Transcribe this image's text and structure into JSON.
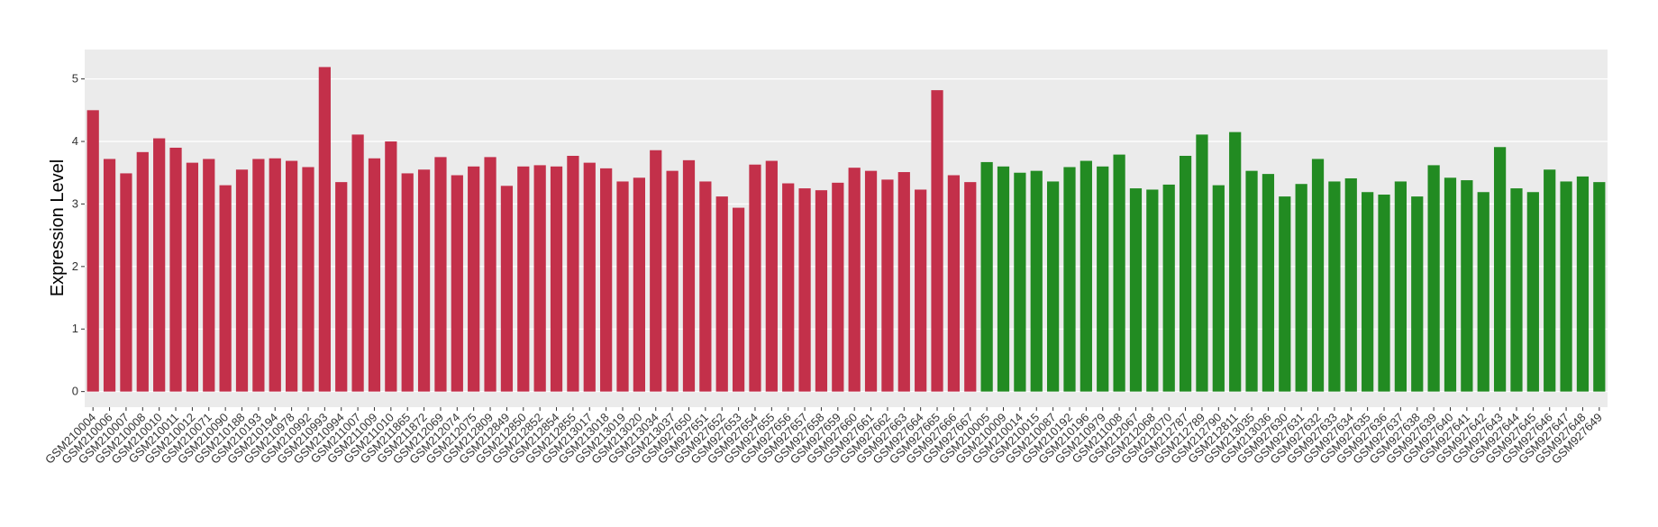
{
  "chart_data": {
    "type": "bar",
    "y_label": "Expression Level",
    "categories": [
      "GSM210004",
      "GSM210006",
      "GSM210007",
      "GSM210008",
      "GSM210010",
      "GSM210011",
      "GSM210012",
      "GSM210071",
      "GSM210090",
      "GSM210188",
      "GSM210193",
      "GSM210194",
      "GSM210978",
      "GSM210992",
      "GSM210993",
      "GSM210994",
      "GSM211007",
      "GSM211009",
      "GSM211010",
      "GSM211865",
      "GSM211872",
      "GSM212069",
      "GSM212074",
      "GSM212075",
      "GSM212809",
      "GSM212849",
      "GSM212850",
      "GSM212852",
      "GSM212854",
      "GSM212855",
      "GSM213017",
      "GSM213018",
      "GSM213019",
      "GSM213020",
      "GSM213034",
      "GSM213037",
      "GSM927650",
      "GSM927651",
      "GSM927652",
      "GSM927653",
      "GSM927654",
      "GSM927655",
      "GSM927656",
      "GSM927657",
      "GSM927658",
      "GSM927659",
      "GSM927660",
      "GSM927661",
      "GSM927662",
      "GSM927663",
      "GSM927664",
      "GSM927665",
      "GSM927666",
      "GSM927667",
      "GSM210005",
      "GSM210009",
      "GSM210014",
      "GSM210015",
      "GSM210087",
      "GSM210192",
      "GSM210196",
      "GSM210979",
      "GSM211008",
      "GSM212067",
      "GSM212068",
      "GSM212070",
      "GSM212787",
      "GSM212789",
      "GSM212790",
      "GSM212811",
      "GSM213035",
      "GSM213036",
      "GSM927630",
      "GSM927631",
      "GSM927632",
      "GSM927633",
      "GSM927634",
      "GSM927635",
      "GSM927636",
      "GSM927637",
      "GSM927638",
      "GSM927639",
      "GSM927640",
      "GSM927641",
      "GSM927642",
      "GSM927643",
      "GSM927644",
      "GSM927645",
      "GSM927646",
      "GSM927647",
      "GSM927648",
      "GSM927649"
    ],
    "values": [
      4.5,
      3.72,
      3.49,
      3.83,
      4.05,
      3.9,
      3.66,
      3.72,
      3.3,
      3.55,
      3.72,
      3.73,
      3.69,
      3.59,
      5.19,
      3.35,
      4.11,
      3.73,
      4.0,
      3.49,
      3.55,
      3.75,
      3.46,
      3.6,
      3.75,
      3.29,
      3.6,
      3.62,
      3.6,
      3.77,
      3.66,
      3.57,
      3.36,
      3.42,
      3.86,
      3.53,
      3.7,
      3.36,
      3.12,
      2.94,
      3.63,
      3.69,
      3.33,
      3.25,
      3.22,
      3.34,
      3.58,
      3.53,
      3.39,
      3.51,
      3.23,
      4.82,
      3.46,
      3.35,
      3.67,
      3.6,
      3.5,
      3.53,
      3.36,
      3.59,
      3.69,
      3.6,
      3.79,
      3.25,
      3.23,
      3.31,
      3.77,
      4.11,
      3.3,
      4.15,
      3.53,
      3.48,
      3.12,
      3.32,
      3.72,
      3.36,
      3.41,
      3.19,
      3.15,
      3.36,
      3.12,
      3.62,
      3.42,
      3.38,
      3.19,
      3.91,
      3.25,
      3.19,
      3.55,
      3.36,
      3.44,
      3.35
    ],
    "bar_colors": [
      "#c3304a",
      "#c3304a",
      "#c3304a",
      "#c3304a",
      "#c3304a",
      "#c3304a",
      "#c3304a",
      "#c3304a",
      "#c3304a",
      "#c3304a",
      "#c3304a",
      "#c3304a",
      "#c3304a",
      "#c3304a",
      "#c3304a",
      "#c3304a",
      "#c3304a",
      "#c3304a",
      "#c3304a",
      "#c3304a",
      "#c3304a",
      "#c3304a",
      "#c3304a",
      "#c3304a",
      "#c3304a",
      "#c3304a",
      "#c3304a",
      "#c3304a",
      "#c3304a",
      "#c3304a",
      "#c3304a",
      "#c3304a",
      "#c3304a",
      "#c3304a",
      "#c3304a",
      "#c3304a",
      "#c3304a",
      "#c3304a",
      "#c3304a",
      "#c3304a",
      "#c3304a",
      "#c3304a",
      "#c3304a",
      "#c3304a",
      "#c3304a",
      "#c3304a",
      "#c3304a",
      "#c3304a",
      "#c3304a",
      "#c3304a",
      "#c3304a",
      "#c3304a",
      "#c3304a",
      "#c3304a",
      "#228b22",
      "#228b22",
      "#228b22",
      "#228b22",
      "#228b22",
      "#228b22",
      "#228b22",
      "#228b22",
      "#228b22",
      "#228b22",
      "#228b22",
      "#228b22",
      "#228b22",
      "#228b22",
      "#228b22",
      "#228b22",
      "#228b22",
      "#228b22",
      "#228b22",
      "#228b22",
      "#228b22",
      "#228b22",
      "#228b22",
      "#228b22",
      "#228b22",
      "#228b22",
      "#228b22",
      "#228b22",
      "#228b22",
      "#228b22",
      "#228b22",
      "#228b22",
      "#228b22",
      "#228b22",
      "#228b22",
      "#228b22",
      "#228b22",
      "#228b22"
    ],
    "ylim": [
      -0.25,
      5.47
    ],
    "yticks": [
      0,
      1,
      2,
      3,
      4,
      5
    ],
    "grid": true
  }
}
